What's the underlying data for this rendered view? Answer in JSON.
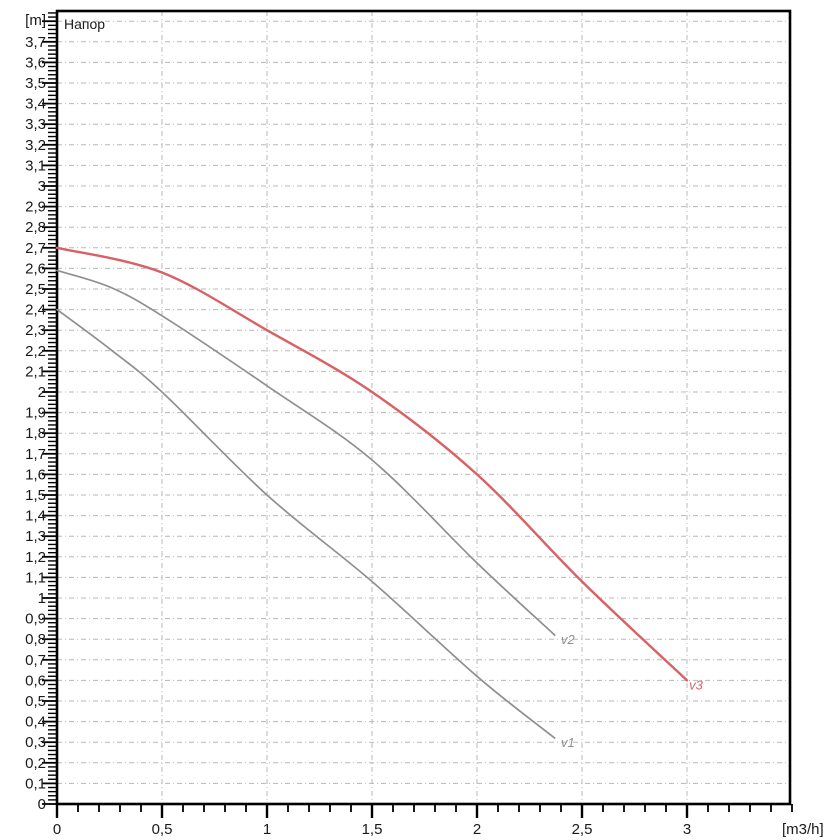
{
  "chart_data": {
    "type": "line",
    "title": "Напор",
    "ylabel_unit": "[m]",
    "xlabel_unit": "[m3/h]",
    "grid": {
      "x_step": 0.5,
      "x_max": 3.0,
      "y_step": 0.1,
      "y_max": 3.8,
      "color": "#b8b8b8",
      "on": true
    },
    "xlim": [
      0,
      3.49
    ],
    "ylim": [
      0,
      3.85
    ],
    "axis_color": "#000000",
    "text_color": "#1a1a1a",
    "x_ticks": [
      {
        "v": 0,
        "label": "0"
      },
      {
        "v": 0.5,
        "label": "0,5"
      },
      {
        "v": 1,
        "label": "1"
      },
      {
        "v": 1.5,
        "label": "1,5"
      },
      {
        "v": 2,
        "label": "2"
      },
      {
        "v": 2.5,
        "label": "2,5"
      },
      {
        "v": 3,
        "label": "3"
      }
    ],
    "x_minor_step": 0.1,
    "y_minor_step": 0.02,
    "y_ticks": [
      {
        "v": 0,
        "label": "0"
      },
      {
        "v": 0.1,
        "label": "0,1"
      },
      {
        "v": 0.2,
        "label": "0,2"
      },
      {
        "v": 0.3,
        "label": "0,3"
      },
      {
        "v": 0.4,
        "label": "0,4"
      },
      {
        "v": 0.5,
        "label": "0,5"
      },
      {
        "v": 0.6,
        "label": "0,6"
      },
      {
        "v": 0.7,
        "label": "0,7"
      },
      {
        "v": 0.8,
        "label": "0,8"
      },
      {
        "v": 0.9,
        "label": "0,9"
      },
      {
        "v": 1,
        "label": "1"
      },
      {
        "v": 1.1,
        "label": "1,1"
      },
      {
        "v": 1.2,
        "label": "1,2"
      },
      {
        "v": 1.3,
        "label": "1,3"
      },
      {
        "v": 1.4,
        "label": "1,4"
      },
      {
        "v": 1.5,
        "label": "1,5"
      },
      {
        "v": 1.6,
        "label": "1,6"
      },
      {
        "v": 1.7,
        "label": "1,7"
      },
      {
        "v": 1.8,
        "label": "1,8"
      },
      {
        "v": 1.9,
        "label": "1,9"
      },
      {
        "v": 2,
        "label": "2"
      },
      {
        "v": 2.1,
        "label": "2,1"
      },
      {
        "v": 2.2,
        "label": "2,2"
      },
      {
        "v": 2.3,
        "label": "2,3"
      },
      {
        "v": 2.4,
        "label": "2,4"
      },
      {
        "v": 2.5,
        "label": "2,5"
      },
      {
        "v": 2.6,
        "label": "2,6"
      },
      {
        "v": 2.7,
        "label": "2,7"
      },
      {
        "v": 2.8,
        "label": "2,8"
      },
      {
        "v": 2.9,
        "label": "2,9"
      },
      {
        "v": 3,
        "label": "3"
      },
      {
        "v": 3.1,
        "label": "3,1"
      },
      {
        "v": 3.2,
        "label": "3,2"
      },
      {
        "v": 3.3,
        "label": "3,3"
      },
      {
        "v": 3.4,
        "label": "3,4"
      },
      {
        "v": 3.5,
        "label": "3,5"
      },
      {
        "v": 3.6,
        "label": "3,6"
      },
      {
        "v": 3.7,
        "label": "3,7"
      }
    ],
    "series": [
      {
        "name": "v1",
        "color": "#8f8f8f",
        "width": 1.7,
        "points": [
          [
            0,
            2.4
          ],
          [
            0.25,
            2.21
          ],
          [
            0.5,
            2.0
          ],
          [
            1.0,
            1.5
          ],
          [
            1.5,
            1.08
          ],
          [
            2.0,
            0.62
          ],
          [
            2.37,
            0.32
          ]
        ],
        "label_at": [
          2.4,
          0.3
        ]
      },
      {
        "name": "v2",
        "color": "#8f8f8f",
        "width": 1.7,
        "points": [
          [
            0,
            2.59
          ],
          [
            0.25,
            2.51
          ],
          [
            0.5,
            2.37
          ],
          [
            1.0,
            2.03
          ],
          [
            1.5,
            1.67
          ],
          [
            2.0,
            1.17
          ],
          [
            2.37,
            0.82
          ]
        ],
        "label_at": [
          2.4,
          0.8
        ]
      },
      {
        "name": "v3",
        "color": "#d96064",
        "width": 2.4,
        "points": [
          [
            0,
            2.7
          ],
          [
            0.5,
            2.58
          ],
          [
            1.0,
            2.3
          ],
          [
            1.5,
            2.0
          ],
          [
            2.0,
            1.6
          ],
          [
            2.5,
            1.08
          ],
          [
            3.0,
            0.6
          ]
        ],
        "label_at": [
          3.01,
          0.58
        ]
      }
    ]
  }
}
